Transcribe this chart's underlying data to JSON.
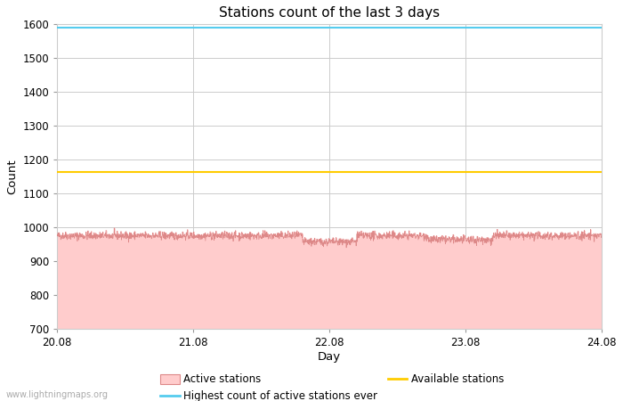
{
  "title": "Stations count of the last 3 days",
  "xlabel": "Day",
  "ylabel": "Count",
  "ylim": [
    700,
    1600
  ],
  "yticks": [
    700,
    800,
    900,
    1000,
    1100,
    1200,
    1300,
    1400,
    1500,
    1600
  ],
  "x_start": 20.08,
  "x_end": 24.08,
  "xticks": [
    20.08,
    21.08,
    22.08,
    23.08,
    24.08
  ],
  "xticklabels": [
    "20.08",
    "21.08",
    "22.08",
    "23.08",
    "24.08"
  ],
  "highest_ever_value": 1590,
  "highest_ever_color": "#55ccee",
  "available_stations_value": 1163,
  "available_stations_color": "#ffcc00",
  "active_stations_mean": 975,
  "active_stations_fill_color": "#ffcccc",
  "active_stations_line_color": "#dd8888",
  "background_color": "#ffffff",
  "grid_color": "#cccccc",
  "watermark": "www.lightningmaps.org",
  "legend_labels": [
    "Active stations",
    "Highest count of active stations ever",
    "Available stations"
  ],
  "seed": 42,
  "num_points": 2000
}
